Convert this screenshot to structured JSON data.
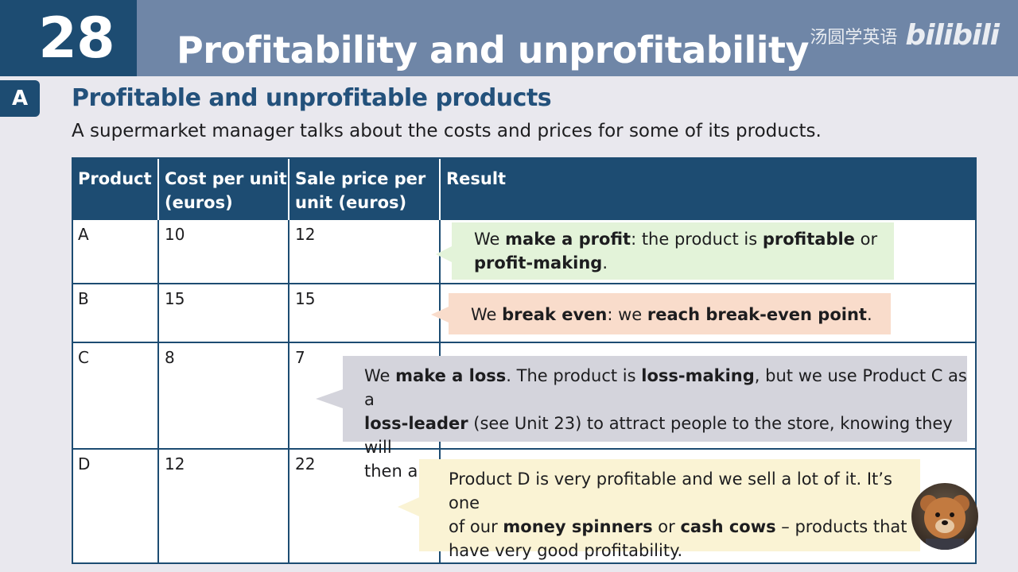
{
  "header": {
    "unit_number": "28",
    "title": "Profitability and unprofitability",
    "watermark_cn": "汤圆学英语",
    "watermark_logo": "bilibili"
  },
  "section": {
    "letter": "A",
    "heading": "Profitable and unprofitable products",
    "intro": "A supermarket manager talks about the costs and prices for some of its products."
  },
  "table": {
    "headers": {
      "product": "Product",
      "cost_line1": "Cost per unit",
      "cost_line2": "(euros)",
      "sale_line1": "Sale price per",
      "sale_line2": "unit (euros)",
      "result": "Result"
    },
    "rows": [
      {
        "product": "A",
        "cost": "10",
        "sale": "12"
      },
      {
        "product": "B",
        "cost": "15",
        "sale": "15"
      },
      {
        "product": "C",
        "cost": "8",
        "sale": "7"
      },
      {
        "product": "D",
        "cost": "12",
        "sale": "22"
      }
    ]
  },
  "callouts": {
    "a": {
      "l1_t1": "We ",
      "l1_b1": "make a profit",
      "l1_t2": ": the product is ",
      "l1_b2": "profitable",
      "l1_t3": " or",
      "l2_b1": "profit-making",
      "l2_t1": ".",
      "color": "#e3f3d9"
    },
    "b": {
      "t1": "We ",
      "b1": "break even",
      "t2": ": we ",
      "b2": "reach break-even point",
      "t3": ".",
      "color": "#f9dccb"
    },
    "c": {
      "l1_t1": "We ",
      "l1_b1": "make a loss",
      "l1_t2": ". The product is ",
      "l1_b2": "loss-making",
      "l1_t3": ", but we use Product C as a",
      "l2_b1": "loss-leader",
      "l2_t1": " (see Unit 23) to attract people to the store, knowing they will",
      "l3_t1": "then also buy profitable products.",
      "color": "#d4d4dc"
    },
    "d": {
      "l1_t1": "Product D is very profitable and we sell a lot of it. It’s one",
      "l2_t1": "of our ",
      "l2_b1": "money spinners",
      "l2_t2": " or ",
      "l2_b2": "cash cows",
      "l2_t3": " – products that",
      "l3_t1": "have very good profitability.",
      "color": "#faf3d4"
    }
  },
  "colors": {
    "navy": "#1d4c72",
    "title_band": "#6f86a7",
    "page_bg": "#e9e8ee"
  }
}
